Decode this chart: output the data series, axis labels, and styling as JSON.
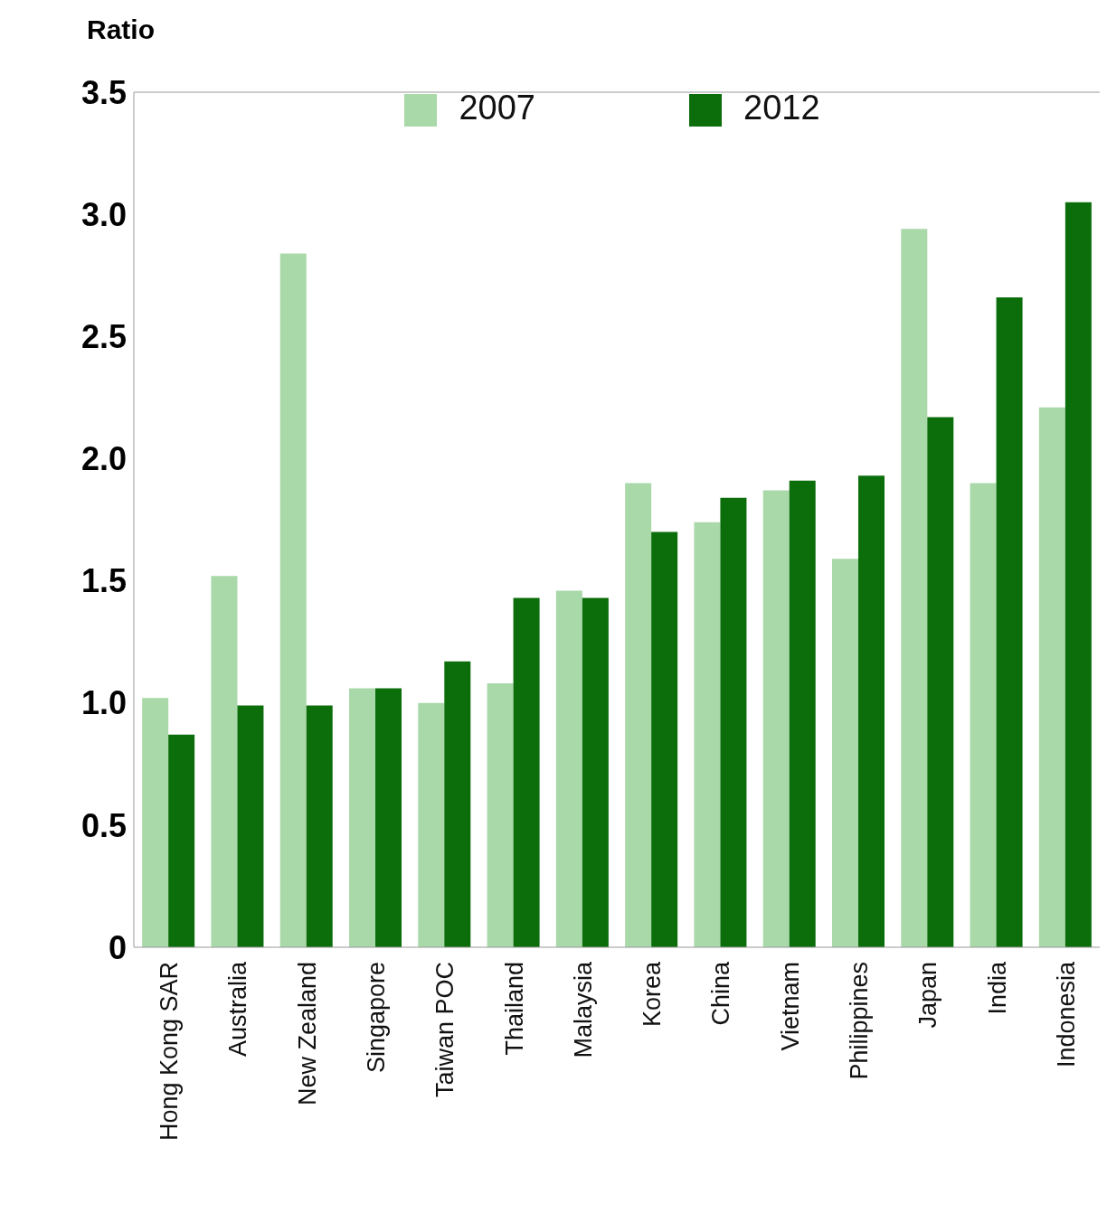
{
  "chart_data": {
    "type": "bar",
    "ylabel": "Ratio",
    "categories": [
      "Hong Kong SAR",
      "Australia",
      "New Zealand",
      "Singapore",
      "Taiwan POC",
      "Thailand",
      "Malaysia",
      "Korea",
      "China",
      "Vietnam",
      "Philippines",
      "Japan",
      "India",
      "Indonesia"
    ],
    "series": [
      {
        "name": "2007",
        "color": "#a9d8a9",
        "values": [
          1.02,
          1.52,
          2.84,
          1.06,
          1.0,
          1.08,
          1.46,
          1.9,
          1.74,
          1.87,
          1.59,
          2.94,
          1.9,
          2.21
        ]
      },
      {
        "name": "2012",
        "color": "#0b6e0b",
        "values": [
          0.87,
          0.99,
          0.99,
          1.06,
          1.17,
          1.43,
          1.43,
          1.7,
          1.84,
          1.91,
          1.93,
          2.17,
          2.66,
          3.05
        ]
      }
    ],
    "ylim": [
      0,
      3.5
    ],
    "yticks": [
      0,
      {
        "value": 0.5,
        "label": "0.5"
      },
      {
        "value": 1,
        "label": "1.0"
      },
      {
        "value": 1.5,
        "label": "1.5"
      },
      {
        "value": 2,
        "label": "2.0"
      },
      {
        "value": 2.5,
        "label": "2.5"
      },
      {
        "value": 3,
        "label": "3.0"
      },
      {
        "value": 3.5,
        "label": "3.5"
      }
    ],
    "grid": false,
    "legend": "top"
  }
}
